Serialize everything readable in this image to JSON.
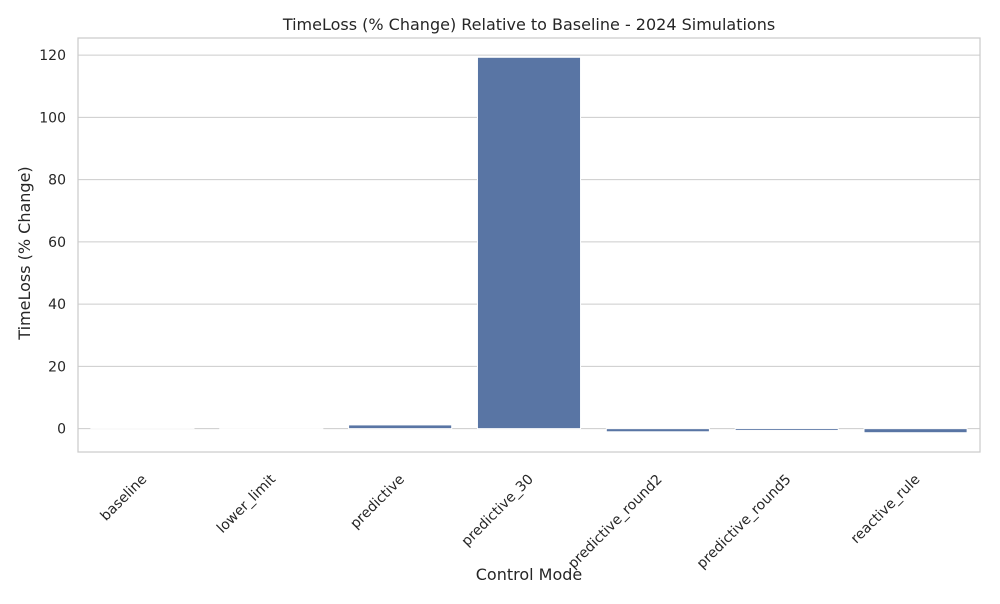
{
  "chart_data": {
    "type": "bar",
    "title": "TimeLoss (% Change) Relative to Baseline - 2024 Simulations",
    "xlabel": "Control Mode",
    "ylabel": "TimeLoss (% Change)",
    "categories": [
      "baseline",
      "lower_limit",
      "predictive",
      "predictive_30",
      "predictive_round2",
      "predictive_round5",
      "reactive_rule"
    ],
    "values": [
      0,
      -0.2,
      1.2,
      119.3,
      -1.0,
      -0.6,
      -1.3
    ],
    "ylim": [
      -7.5,
      125.5
    ],
    "yticks": [
      0,
      20,
      40,
      60,
      80,
      100,
      120
    ],
    "grid": true,
    "bar_color": "#5975a4"
  }
}
